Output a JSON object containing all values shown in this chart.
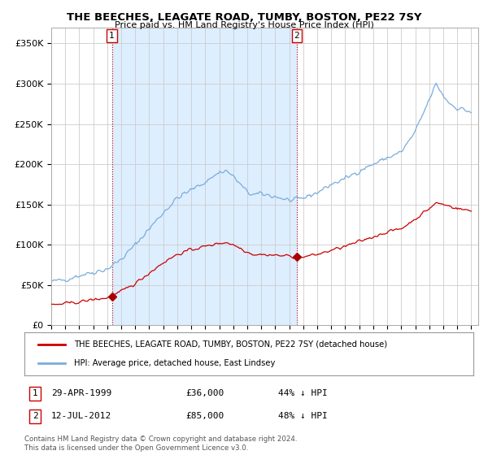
{
  "title": "THE BEECHES, LEAGATE ROAD, TUMBY, BOSTON, PE22 7SY",
  "subtitle": "Price paid vs. HM Land Registry's House Price Index (HPI)",
  "ylabel_ticks": [
    "£0",
    "£50K",
    "£100K",
    "£150K",
    "£200K",
    "£250K",
    "£300K",
    "£350K"
  ],
  "ytick_values": [
    0,
    50000,
    100000,
    150000,
    200000,
    250000,
    300000,
    350000
  ],
  "ylim": [
    0,
    370000
  ],
  "legend_line1": "THE BEECHES, LEAGATE ROAD, TUMBY, BOSTON, PE22 7SY (detached house)",
  "legend_line2": "HPI: Average price, detached house, East Lindsey",
  "sale1_label": "1",
  "sale1_date": "29-APR-1999",
  "sale1_price": "£36,000",
  "sale1_hpi": "44% ↓ HPI",
  "sale1_year": 1999.33,
  "sale1_value": 36000,
  "sale2_label": "2",
  "sale2_date": "12-JUL-2012",
  "sale2_price": "£85,000",
  "sale2_hpi": "48% ↓ HPI",
  "sale2_year": 2012.54,
  "sale2_value": 85000,
  "hpi_color": "#7aacdc",
  "price_color": "#cc0000",
  "marker_color": "#aa0000",
  "grid_color": "#cccccc",
  "background_color": "#ffffff",
  "shade_color": "#ddeeff",
  "footnote": "Contains HM Land Registry data © Crown copyright and database right 2024.\nThis data is licensed under the Open Government Licence v3.0.",
  "xmin": 1995,
  "xmax": 2025.5
}
